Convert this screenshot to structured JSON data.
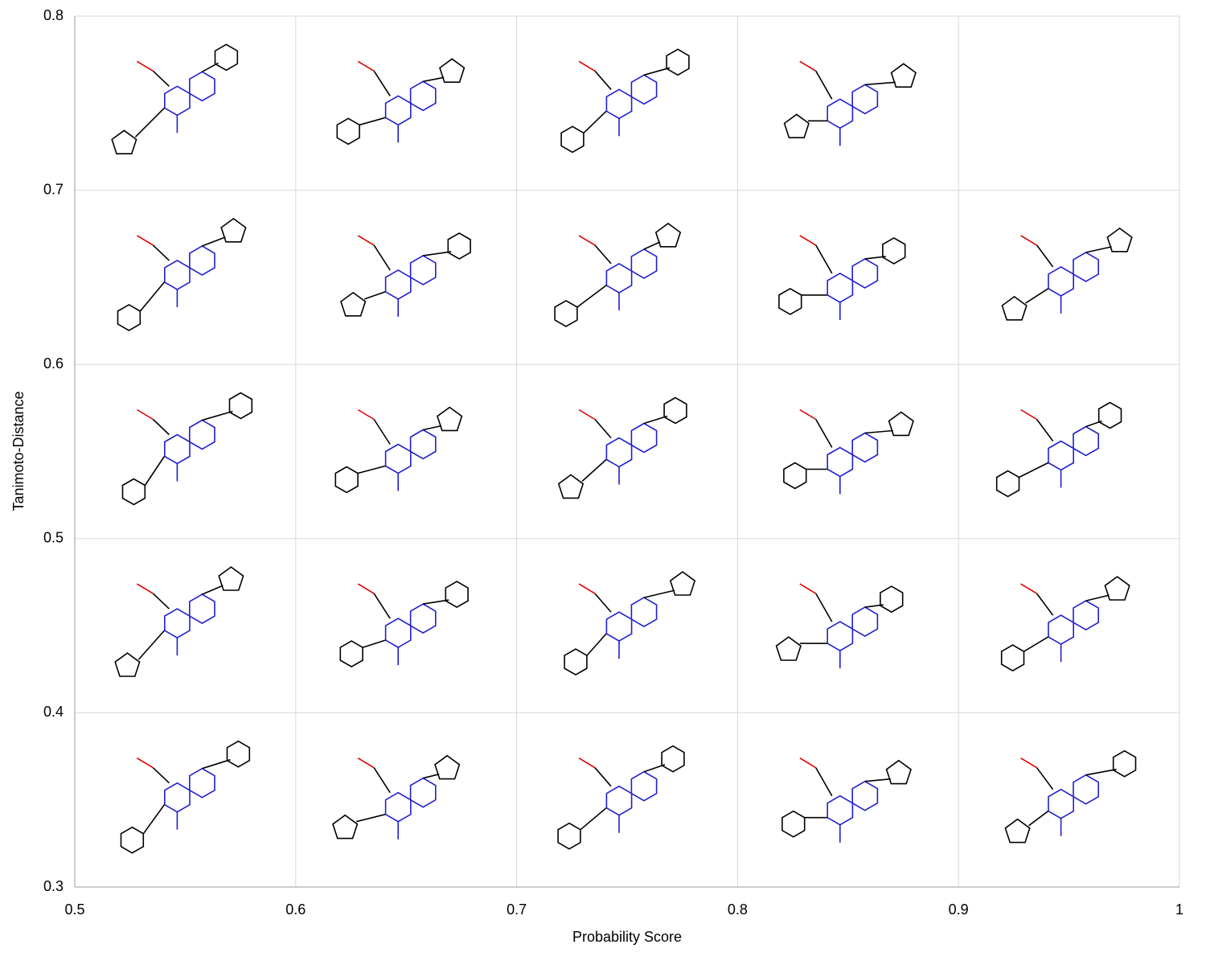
{
  "chart_data": {
    "type": "grid",
    "xlabel": "Probability Score",
    "ylabel": "Tanimoto-Distance",
    "xlim": [
      0.5,
      1
    ],
    "ylim": [
      0.3,
      0.8
    ],
    "xticks": [
      0.5,
      0.6,
      0.7,
      0.8,
      0.9,
      1
    ],
    "yticks": [
      0.3,
      0.4,
      0.5,
      0.6,
      0.7,
      0.8
    ],
    "grid": true,
    "grid_color": "#d9d9d9"
  }
}
